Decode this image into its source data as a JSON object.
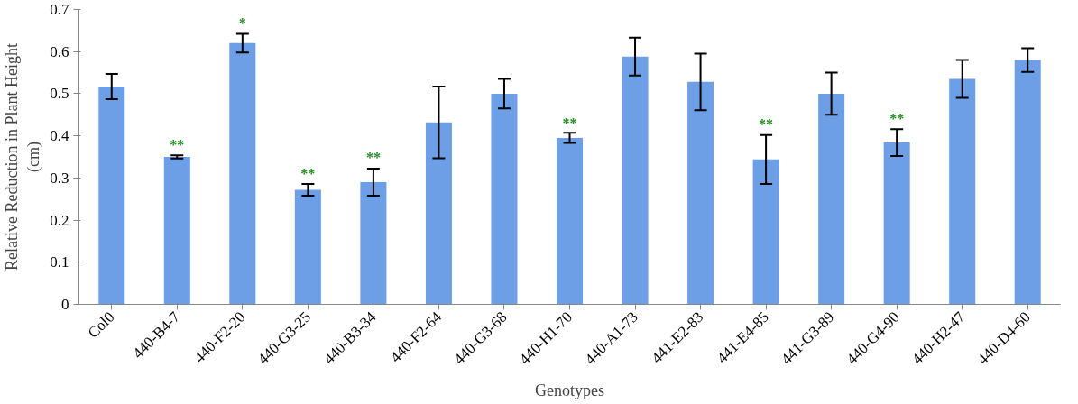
{
  "chart_data": {
    "type": "bar",
    "xlabel": "Genotypes",
    "ylabel": "Relative Reduction in Plant Height\n(cm)",
    "categories": [
      "Col0",
      "440-B4-7",
      "440-F2-20",
      "440-G3-25",
      "440-B3-34",
      "440-F2-64",
      "440-G3-68",
      "440-H1-70",
      "440-A1-73",
      "441-E2-83",
      "441-E4-85",
      "441-G3-89",
      "440-G4-90",
      "440-H2-47",
      "440-D4-60"
    ],
    "values": [
      0.517,
      0.35,
      0.62,
      0.272,
      0.29,
      0.432,
      0.5,
      0.395,
      0.588,
      0.528,
      0.344,
      0.5,
      0.384,
      0.535,
      0.58
    ],
    "errors": [
      0.03,
      0.004,
      0.022,
      0.014,
      0.032,
      0.085,
      0.035,
      0.012,
      0.045,
      0.067,
      0.058,
      0.05,
      0.032,
      0.045,
      0.028
    ],
    "color": "#6d9fe6",
    "ylim": [
      0,
      0.7
    ],
    "yticks": [
      0,
      0.1,
      0.2,
      0.3,
      0.4,
      0.5,
      0.6,
      0.7
    ],
    "grid": false,
    "annotations": [
      {
        "text": "*",
        "x": "440-F2-20",
        "y": 0.65
      },
      {
        "text": "**",
        "x": "440-B4-7",
        "y": 0.36
      },
      {
        "text": "**",
        "x": "440-G3-25",
        "y": 0.292
      },
      {
        "text": "**",
        "x": "440-B3-34",
        "y": 0.33
      },
      {
        "text": "**",
        "x": "440-H1-70",
        "y": 0.413
      },
      {
        "text": "**",
        "x": "441-E4-85",
        "y": 0.41
      },
      {
        "text": "**",
        "x": "440-G4-90",
        "y": 0.423
      }
    ]
  }
}
